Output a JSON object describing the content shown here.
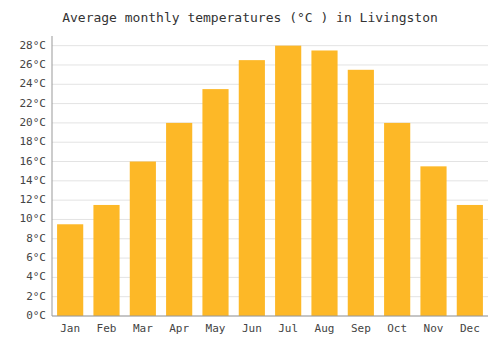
{
  "chart_data": {
    "type": "bar",
    "title": "Average monthly temperatures (°C ) in Livingston",
    "categories": [
      "Jan",
      "Feb",
      "Mar",
      "Apr",
      "May",
      "Jun",
      "Jul",
      "Aug",
      "Sep",
      "Oct",
      "Nov",
      "Dec"
    ],
    "values": [
      9.5,
      11.5,
      16.0,
      20.0,
      23.5,
      26.5,
      28.0,
      27.5,
      25.5,
      20.0,
      15.5,
      11.5
    ],
    "color": "#FDB827",
    "ylim": [
      0,
      29
    ],
    "yticks": [
      {
        "value": 0,
        "label": "0°C"
      },
      {
        "value": 2,
        "label": "2°C"
      },
      {
        "value": 4,
        "label": "4°C"
      },
      {
        "value": 6,
        "label": "6°C"
      },
      {
        "value": 8,
        "label": "8°C"
      },
      {
        "value": 10,
        "label": "10°C"
      },
      {
        "value": 12,
        "label": "12°C"
      },
      {
        "value": 14,
        "label": "14°C"
      },
      {
        "value": 16,
        "label": "16°C"
      },
      {
        "value": 18,
        "label": "18°C"
      },
      {
        "value": 20,
        "label": "20°C"
      },
      {
        "value": 22,
        "label": "22°C"
      },
      {
        "value": 24,
        "label": "24°C"
      },
      {
        "value": 26,
        "label": "26°C"
      },
      {
        "value": 28,
        "label": "28°C"
      }
    ],
    "grid": true
  }
}
